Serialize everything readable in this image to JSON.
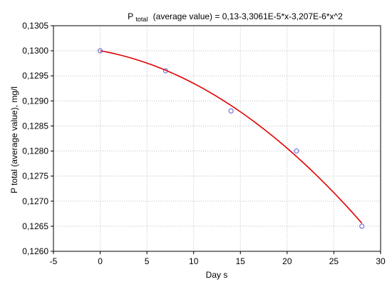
{
  "chart_data": {
    "type": "scatter",
    "title_prefix": "P",
    "title_subscript": "total",
    "title_suffix": "(average value) = 0,13-3,3061E-5*x-3,207E-6*x^2",
    "xlabel": "Day s",
    "ylabel": "P total (average value),  mg/l",
    "xlim": [
      -5,
      30
    ],
    "ylim": [
      0.126,
      0.1305
    ],
    "x_ticks": [
      -5,
      0,
      5,
      10,
      15,
      20,
      25,
      30
    ],
    "x_tick_labels": [
      "-5",
      "0",
      "5",
      "10",
      "15",
      "20",
      "25",
      "30"
    ],
    "y_ticks": [
      0.126,
      0.1265,
      0.127,
      0.1275,
      0.128,
      0.1285,
      0.129,
      0.1295,
      0.13,
      0.1305
    ],
    "y_tick_labels": [
      "0,1260",
      "0,1265",
      "0,1270",
      "0,1275",
      "0,1280",
      "0,1285",
      "0,1290",
      "0,1295",
      "0,1300",
      "0,1305"
    ],
    "grid": true,
    "points": {
      "x": [
        0,
        7,
        14,
        21,
        28
      ],
      "y": [
        0.13,
        0.1296,
        0.1288,
        0.128,
        0.1265
      ],
      "color": "#5a5ad2"
    },
    "fit": {
      "intercept": 0.13,
      "linear": -3.3061e-05,
      "quadratic": -3.207e-06,
      "x_range": [
        0,
        28
      ],
      "color": "#e00000"
    }
  }
}
